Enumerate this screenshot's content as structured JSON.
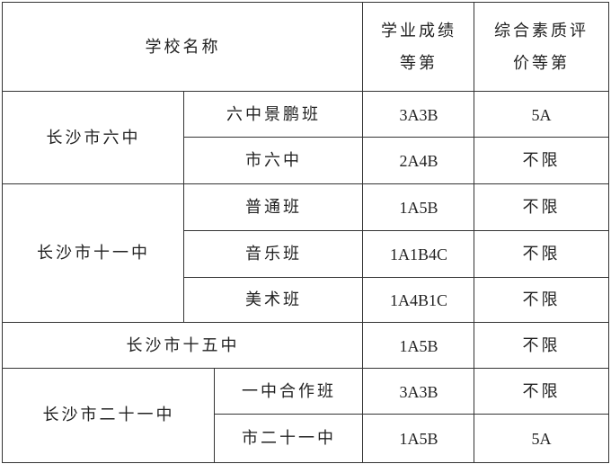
{
  "header": {
    "school": "学校名称",
    "academic": "学业成绩\n等第",
    "overall": "综合素质评\n价等第"
  },
  "groups": [
    {
      "school": "长沙市六中",
      "rows": [
        {
          "class": "六中景鹏班",
          "academic": "3A3B",
          "overall": "5A"
        },
        {
          "class": "市六中",
          "academic": "2A4B",
          "overall": "不限"
        }
      ]
    },
    {
      "school": "长沙市十一中",
      "rows": [
        {
          "class": "普通班",
          "academic": "1A5B",
          "overall": "不限"
        },
        {
          "class": "音乐班",
          "academic": "1A1B4C",
          "overall": "不限"
        },
        {
          "class": "美术班",
          "academic": "1A4B1C",
          "overall": "不限"
        }
      ]
    },
    {
      "school": "长沙市十五中",
      "academic": "1A5B",
      "overall": "不限"
    },
    {
      "school": "长沙市二十一中",
      "rows": [
        {
          "class": "一中合作班",
          "academic": "3A3B",
          "overall": "不限"
        },
        {
          "class": "市二十一中",
          "academic": "1A5B",
          "overall": "5A"
        }
      ]
    }
  ]
}
